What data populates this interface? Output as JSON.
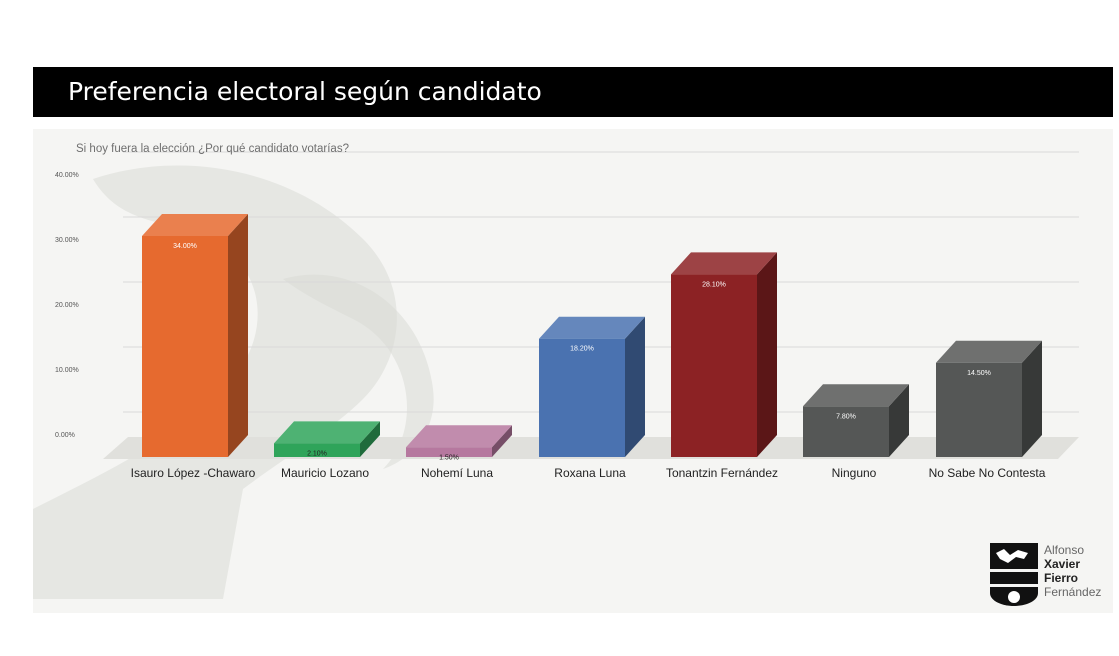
{
  "header": {
    "title": "Preferencia electoral según candidato"
  },
  "chart_data": {
    "type": "bar",
    "subtitle": "Si hoy fuera la elección ¿Por qué candidato votarías?",
    "categories": [
      "Isauro López -Chawaro",
      "Mauricio Lozano",
      "Nohemí Luna",
      "Roxana Luna",
      "Tonantzin Fernández",
      "Ninguno",
      "No Sabe No Contesta"
    ],
    "values": [
      34.0,
      2.1,
      1.5,
      18.2,
      28.1,
      7.8,
      14.5
    ],
    "value_labels": [
      "34.00%",
      "2.10%",
      "1.50%",
      "18.20%",
      "28.10%",
      "7.80%",
      "14.50%"
    ],
    "colors": [
      "#e66a2f",
      "#2fa45a",
      "#b6789f",
      "#4a72b0",
      "#8c2224",
      "#555756",
      "#555756"
    ],
    "yticks": [
      "0.00%",
      "10.00%",
      "20.00%",
      "30.00%",
      "40.00%"
    ],
    "ylim": [
      0,
      40
    ],
    "grid": true,
    "style": "3d"
  },
  "logo": {
    "line1": "Alfonso",
    "line2": "Xavier",
    "line3": "Fierro",
    "line4": "Fernández"
  }
}
